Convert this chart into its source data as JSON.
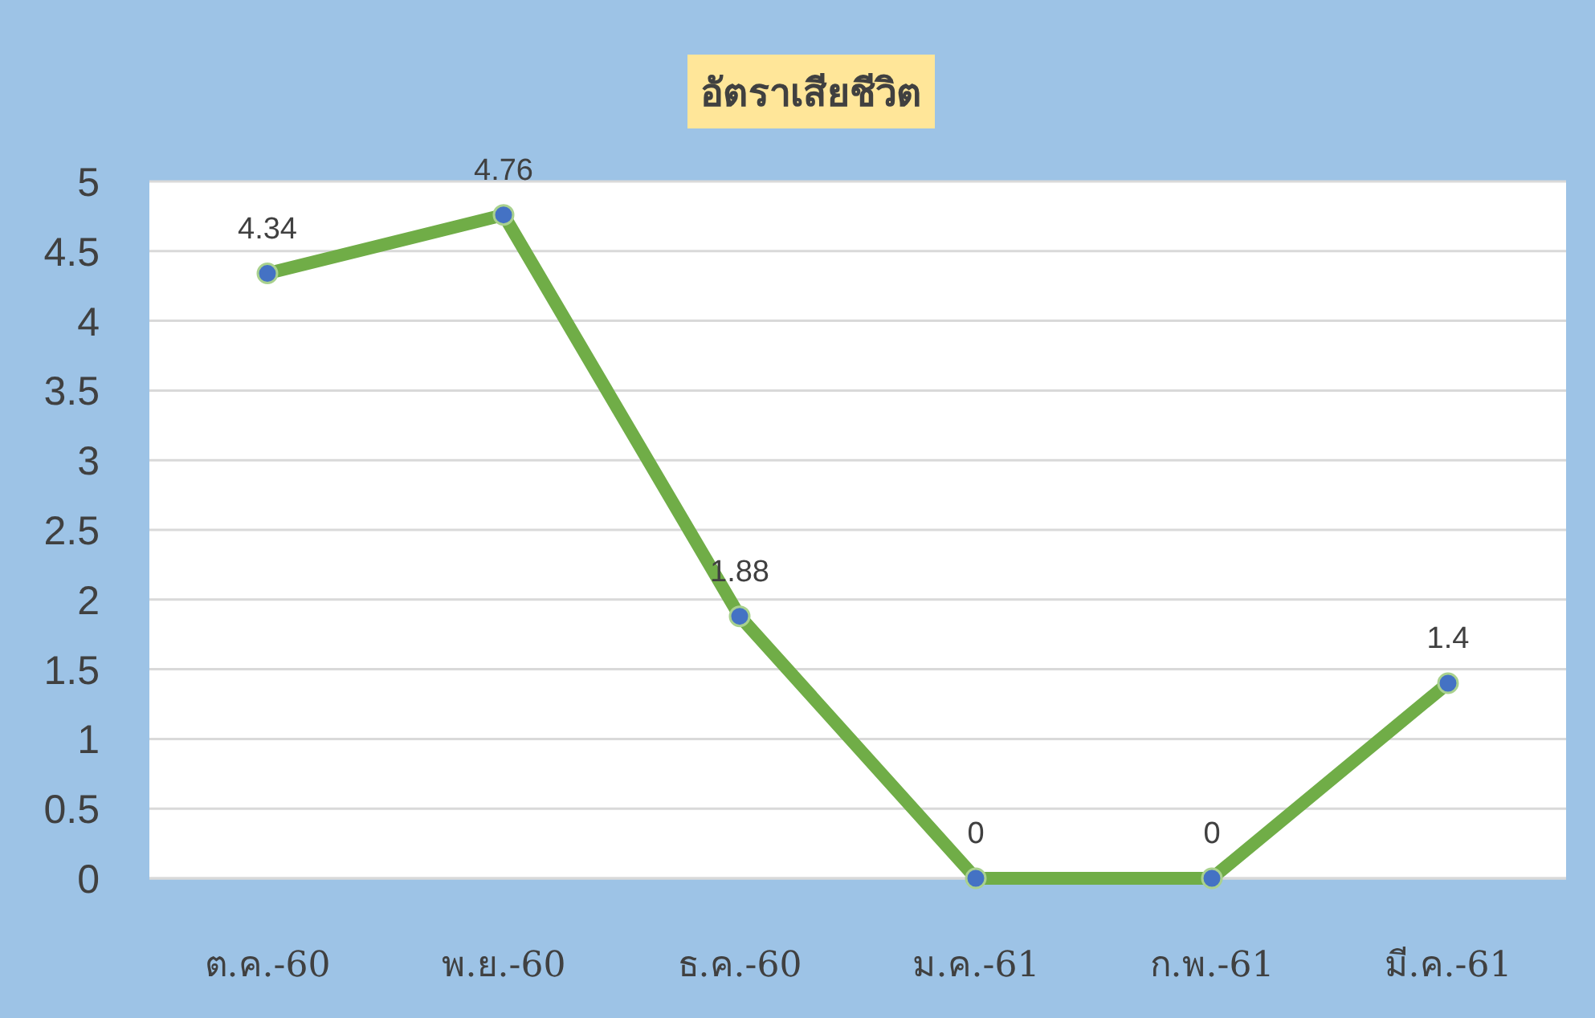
{
  "chart_data": {
    "type": "line",
    "title": "อัตราเสียชีวิต",
    "categories": [
      "ต.ค.-60",
      "พ.ย.-60",
      "ธ.ค.-60",
      "ม.ค.-61",
      "ก.พ.-61",
      "มี.ค.-61"
    ],
    "values": [
      4.34,
      4.76,
      1.88,
      0,
      0,
      1.4
    ],
    "color": "#70ad47",
    "ylim": [
      0,
      5
    ],
    "yticks": [
      0,
      0.5,
      1,
      1.5,
      2,
      2.5,
      3,
      3.5,
      4,
      4.5,
      5
    ],
    "grid": "y",
    "data_labels": true,
    "marker": "circle",
    "line_style": "solid"
  }
}
